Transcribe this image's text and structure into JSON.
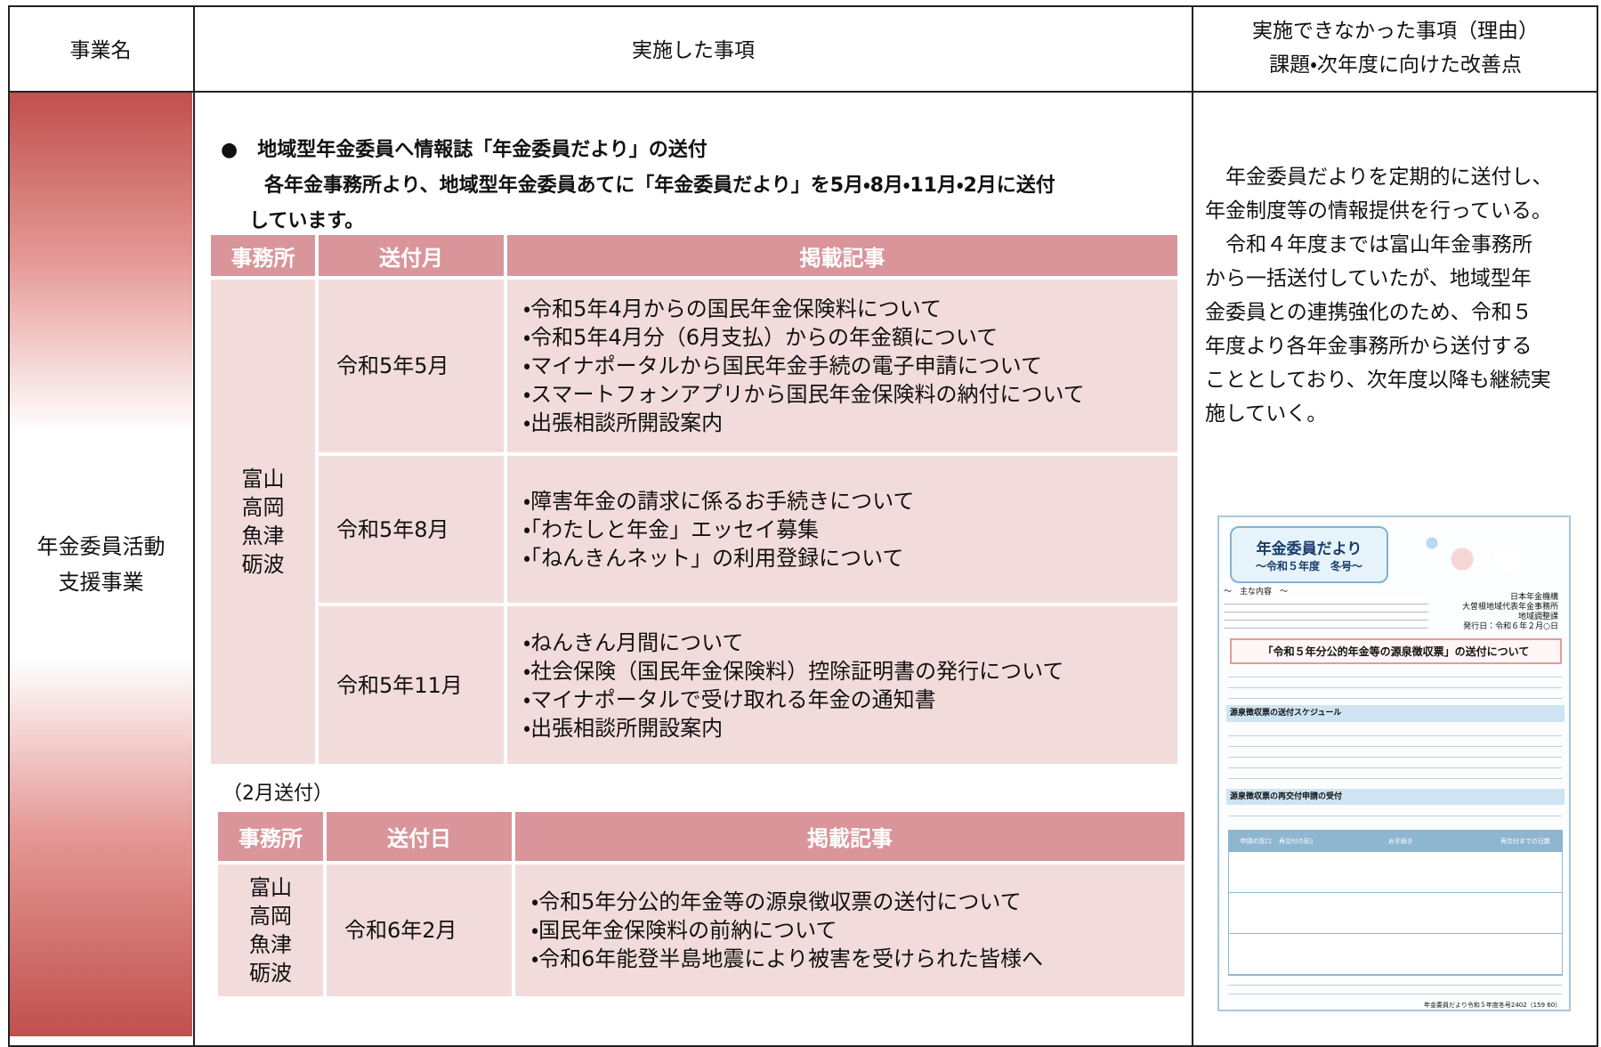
{
  "header": {
    "business_name": "事業名",
    "implemented": "実施した事項",
    "issues_lines": [
      "実施できなかった事項（理由）",
      "課題・次年度に向けた改善点"
    ]
  },
  "business": {
    "name_lines": [
      "年金委員活動",
      "支援事業"
    ]
  },
  "implemented": {
    "heading": "●　地域型年金委員へ情報誌「年金委員だより」の送付",
    "body_lines": [
      "各年金事務所より、地域型年金委員あてに「年金委員だより」を5月・8月・11月・2月に送付",
      "しています。"
    ],
    "table1": {
      "headers": [
        "事務所",
        "送付月",
        "掲載記事"
      ],
      "offices": [
        "富山",
        "高岡",
        "魚津",
        "砺波"
      ],
      "rows": [
        {
          "month": "令和5年5月",
          "articles": [
            "・令和5年4月からの国民年金保険料について",
            "・令和5年4月分（6月支払）からの年金額について",
            "・マイナポータルから国民年金手続の電子申請について",
            "・スマートフォンアプリから国民年金保険料の納付について",
            "・出張相談所開設案内"
          ]
        },
        {
          "month": "令和5年8月",
          "articles": [
            "・障害年金の請求に係るお手続きについて",
            "・「わたしと年金」エッセイ募集",
            "・「ねんきんネット」の利用登録について"
          ]
        },
        {
          "month": "令和5年11月",
          "articles": [
            "・ねんきん月間について",
            "・社会保険（国民年金保険料）控除証明書の発行について",
            "・マイナポータルで受け取れる年金の通知書",
            "・出張相談所開設案内"
          ]
        }
      ]
    },
    "note": "（2月送付）",
    "table2": {
      "headers": [
        "事務所",
        "送付日",
        "掲載記事"
      ],
      "offices": [
        "富山",
        "高岡",
        "魚津",
        "砺波"
      ],
      "rows": [
        {
          "month": "令和6年2月",
          "articles": [
            "・令和5年分公的年金等の源泉徴収票の送付について",
            "・国民年金保険料の前納について",
            "・令和6年能登半島地震により被害を受けられた皆様へ"
          ]
        }
      ]
    }
  },
  "issues": {
    "lines": [
      "　年金委員だよりを定期的に送付し、",
      "年金制度等の情報提供を行っている。",
      "　令和４年度までは富山年金事務所",
      "から一括送付していたが、地域型年",
      "金委員との連携強化のため、令和５",
      "年度より各年金事務所から送付する",
      "こととしており、次年度以降も継続実",
      "施していく。"
    ]
  },
  "newsletter": {
    "title": "年金委員だより",
    "subtitle": "～令和５年度　冬号～",
    "contents": "～　主な内容　～",
    "publisher_lines": [
      "日本年金機構",
      "大曽根地域代表年金事務所",
      "地域調整課",
      "発行日：令和６年２月○日"
    ],
    "article_title": "「令和５年分公的年金等の源泉徴収票」の送付について",
    "sections": [
      "源泉徴収票の送付スケジュール",
      "源泉徴収票の再交付申請の受付"
    ],
    "table_headers": [
      "申請の窓口",
      "再交付の形式",
      "お手続き",
      "再交付までの日数"
    ],
    "footer": "年金委員だより令和５年度冬号2402（159 60）"
  }
}
